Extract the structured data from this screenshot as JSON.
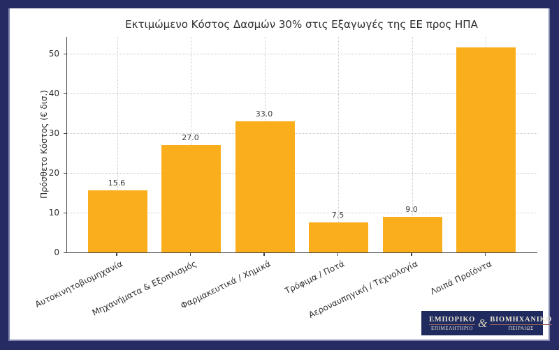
{
  "page": {
    "background_color": "#ffffff",
    "border_color": "#272b63"
  },
  "chart_data": {
    "type": "bar",
    "title": "Εκτιμώμενο Κόστος Δασμών 30% στις Εξαγωγές της ΕΕ προς ΗΠΑ",
    "ylabel": "Πρόσθετο Κόστος (€ δισ.)",
    "xlabel": "",
    "categories": [
      "Αυτοκινητοβιομηχανία",
      "Μηχανήματα & Εξοπλισμός",
      "Φαρμακευτικά / Χημικά",
      "Τρόφιμα / Ποτά",
      "Αεροναυπηγική / Τεχνολογία",
      "Λοιπά Προϊόντα"
    ],
    "values": [
      15.6,
      27.0,
      33.0,
      7.5,
      9.0,
      51.6
    ],
    "value_labels": [
      "15.6",
      "27.0",
      "33.0",
      "7.5",
      "9.0",
      ""
    ],
    "yticks": [
      0,
      10,
      20,
      30,
      40,
      50
    ],
    "ylim": [
      0,
      54.2
    ],
    "bar_color": "#FBAE1C",
    "grid": true,
    "grid_style": "dotted",
    "legend_position": "none"
  },
  "logo": {
    "top_left": "ΕΜΠΟΡΙΚΟ",
    "bottom_left": "ΕΠΙΜΕΛΗΤΗΡΙΟ",
    "ampersand": "&",
    "top_right": "ΒΙΟΜΗΧΑΝΙΚΟ",
    "bottom_right": "ΠΕΙΡΑΙΩΣ",
    "background": "#1f2a5e",
    "text_color": "#ece6d4",
    "icon": "caduceus-icon"
  }
}
